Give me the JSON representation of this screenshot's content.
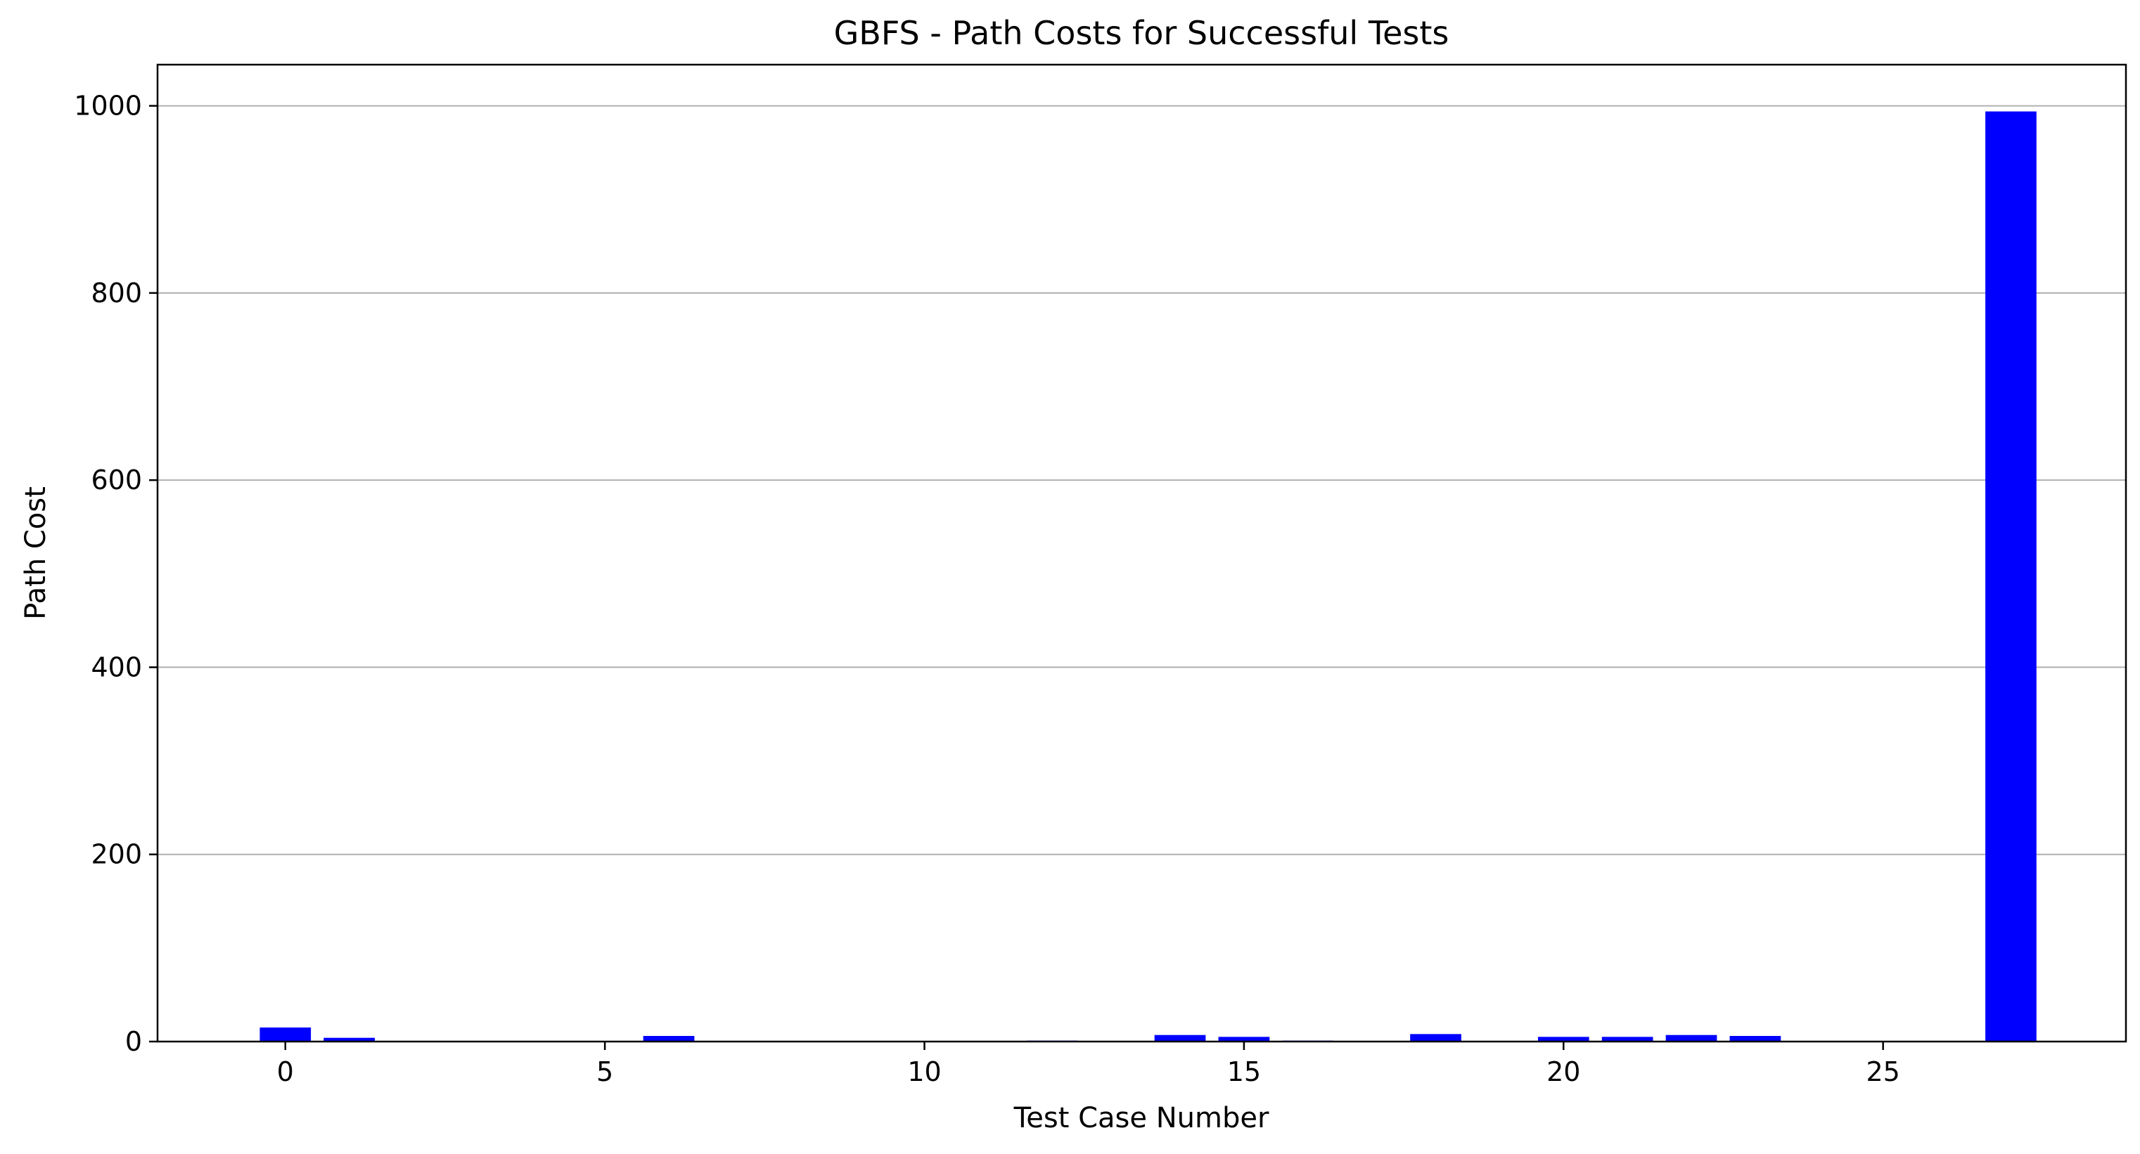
{
  "chart_data": {
    "type": "bar",
    "title": "GBFS - Path Costs for Successful Tests",
    "xlabel": "Test Case Number",
    "ylabel": "Path Cost",
    "x": [
      0,
      1,
      6,
      12,
      14,
      15,
      16,
      18,
      20,
      21,
      22,
      23,
      27
    ],
    "values": [
      15,
      4,
      6,
      1,
      7,
      5,
      1,
      8,
      5,
      5,
      7,
      6,
      994
    ],
    "xlim": [
      -2,
      28.8
    ],
    "ylim": [
      0,
      1044
    ],
    "xticks": [
      0,
      5,
      10,
      15,
      20,
      25
    ],
    "yticks": [
      0,
      200,
      400,
      600,
      800,
      1000
    ],
    "bar_width": 0.8,
    "bar_color": "#0000ff",
    "grid": "y",
    "grid_color": "#b0b0b0",
    "legend": "none"
  }
}
